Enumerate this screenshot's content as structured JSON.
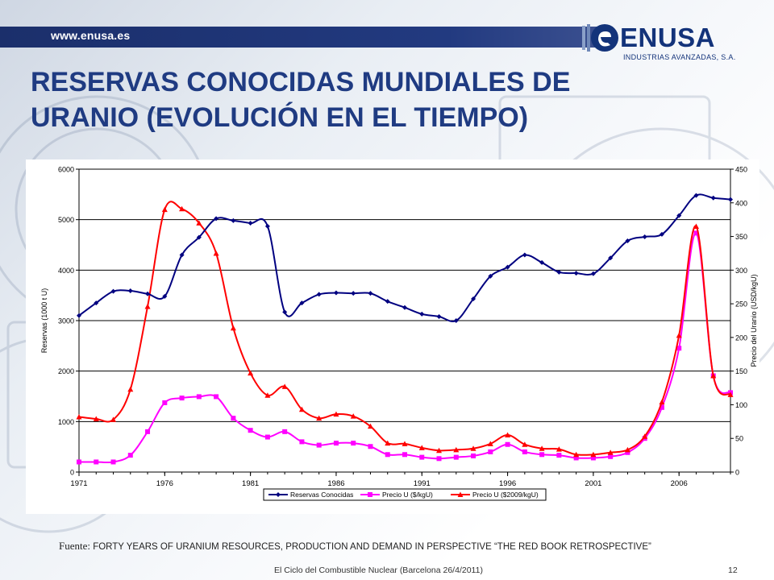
{
  "header": {
    "url": "www.enusa.es",
    "logo_name": "ENUSA",
    "logo_subtitle": "INDUSTRIAS AVANZADAS, S.A."
  },
  "slide": {
    "title_line1": "RESERVAS CONOCIDAS MUNDIALES DE",
    "title_line2": "URANIO (EVOLUCIÓN EN EL TIEMPO)",
    "source_label": "Fuente:",
    "source_text": "FORTY YEARS OF URANIUM RESOURCES, PRODUCTION  AND DEMAND IN PERSPECTIVE “THE RED BOOK RETROSPECTIVE”",
    "footer": "El Ciclo del Combustible Nuclear (Barcelona 26/4/2011)",
    "page_number": "12"
  },
  "colors": {
    "title": "#1f3b82",
    "topbar": "#1b2f6b",
    "series_reserves": "#000080",
    "series_price_usd": "#ff00ff",
    "series_price_2009": "#ff0000"
  },
  "chart_data": {
    "type": "line",
    "x_tick_labels": [
      "1971",
      "1976",
      "1981",
      "1986",
      "1991",
      "1996",
      "2001",
      "2006"
    ],
    "xlim": [
      1971,
      2009
    ],
    "y_left": {
      "label": "Reservas (1000 t U)",
      "lim": [
        0,
        6000
      ],
      "ticks": [
        0,
        1000,
        2000,
        3000,
        4000,
        5000,
        6000
      ]
    },
    "y_right": {
      "label": "Precio del Uranio (USD/kgU)",
      "lim": [
        0,
        450
      ],
      "ticks": [
        0,
        50,
        100,
        150,
        200,
        250,
        300,
        350,
        400,
        450
      ]
    },
    "grid": "horizontal",
    "legend_position": "bottom",
    "series": [
      {
        "name": "Reservas Conocidas",
        "axis": "left",
        "marker": "diamond",
        "color": "#000080",
        "x": [
          1971,
          1972,
          1973,
          1974,
          1975,
          1976,
          1977,
          1978,
          1979,
          1980,
          1981,
          1982,
          1983,
          1984,
          1985,
          1986,
          1987,
          1988,
          1989,
          1990,
          1991,
          1992,
          1993,
          1994,
          1995,
          1996,
          1997,
          1998,
          1999,
          2000,
          2001,
          2002,
          2003,
          2004,
          2005,
          2006,
          2007,
          2008,
          2009
        ],
        "values": [
          3100,
          3350,
          3580,
          3590,
          3530,
          3480,
          4300,
          4650,
          5020,
          4980,
          4930,
          4870,
          3170,
          3350,
          3520,
          3550,
          3540,
          3540,
          3380,
          3260,
          3130,
          3080,
          3000,
          3430,
          3880,
          4060,
          4300,
          4150,
          3960,
          3940,
          3930,
          4240,
          4580,
          4660,
          4710,
          5080,
          5480,
          5430,
          5400
        ]
      },
      {
        "name": "Precio U ($/kgU)",
        "axis": "right",
        "marker": "square",
        "color": "#ff00ff",
        "x": [
          1971,
          1972,
          1973,
          1974,
          1975,
          1976,
          1977,
          1978,
          1979,
          1980,
          1981,
          1982,
          1983,
          1984,
          1985,
          1986,
          1987,
          1988,
          1989,
          1990,
          1991,
          1992,
          1993,
          1994,
          1995,
          1996,
          1997,
          1998,
          1999,
          2000,
          2001,
          2002,
          2003,
          2004,
          2005,
          2006,
          2007,
          2008,
          2009
        ],
        "values": [
          15,
          15,
          15,
          25,
          60,
          103,
          110,
          112,
          112,
          80,
          62,
          52,
          60,
          45,
          40,
          43,
          43,
          38,
          26,
          26,
          22,
          20,
          22,
          24,
          30,
          41,
          30,
          26,
          25,
          21,
          21,
          23,
          29,
          50,
          96,
          184,
          355,
          143,
          118
        ]
      },
      {
        "name": "Precio U ($2009/kgU)",
        "axis": "right",
        "marker": "triangle",
        "color": "#ff0000",
        "x": [
          1971,
          1972,
          1973,
          1974,
          1975,
          1976,
          1977,
          1978,
          1979,
          1980,
          1981,
          1982,
          1983,
          1984,
          1985,
          1986,
          1987,
          1988,
          1989,
          1990,
          1991,
          1992,
          1993,
          1994,
          1995,
          1996,
          1997,
          1998,
          1999,
          2000,
          2001,
          2002,
          2003,
          2004,
          2005,
          2006,
          2007,
          2008,
          2009
        ],
        "values": [
          82,
          79,
          78,
          123,
          246,
          390,
          391,
          370,
          325,
          214,
          147,
          114,
          127,
          93,
          80,
          86,
          83,
          68,
          43,
          42,
          36,
          32,
          33,
          35,
          42,
          55,
          41,
          35,
          34,
          26,
          26,
          29,
          33,
          53,
          104,
          203,
          365,
          143,
          115
        ]
      }
    ]
  }
}
